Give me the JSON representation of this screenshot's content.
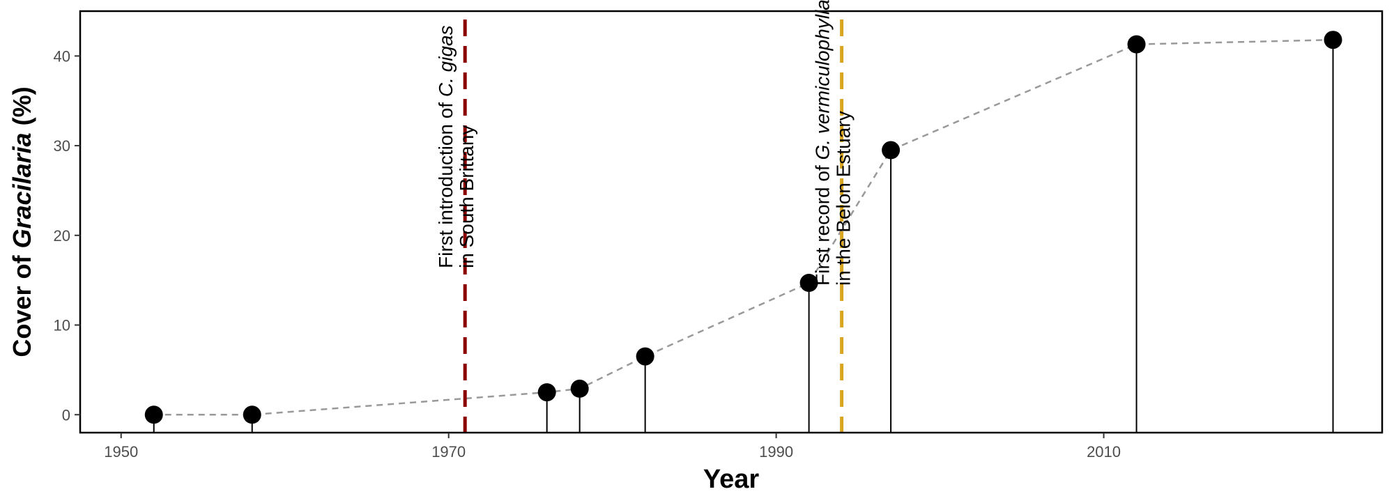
{
  "chart_data": {
    "type": "scatter",
    "xlabel": "Year",
    "ylabel_parts": [
      {
        "text": "Cover of ",
        "italic": false
      },
      {
        "text": "Gracilaria",
        "italic": true
      },
      {
        "text": " (%)",
        "italic": false
      }
    ],
    "xlim": [
      1947.5,
      2027
    ],
    "ylim": [
      -2,
      45
    ],
    "x_ticks": [
      1950,
      1970,
      1990,
      2010
    ],
    "y_ticks": [
      0,
      10,
      20,
      30,
      40
    ],
    "grid": false,
    "legend": "none",
    "series": [
      {
        "points": [
          {
            "x": 1952,
            "y": 0
          },
          {
            "x": 1958,
            "y": 0
          },
          {
            "x": 1976,
            "y": 2.5
          },
          {
            "x": 1978,
            "y": 2.9
          },
          {
            "x": 1982,
            "y": 6.5
          },
          {
            "x": 1992,
            "y": 14.7
          },
          {
            "x": 1997,
            "y": 29.5
          },
          {
            "x": 2012,
            "y": 41.3
          },
          {
            "x": 2024,
            "y": 41.8
          }
        ]
      }
    ],
    "vlines": [
      {
        "x": 1971,
        "color": "#8B0000",
        "label_lines": [
          [
            {
              "text": "First introduction of ",
              "italic": false
            },
            {
              "text": "C. gigas",
              "italic": true
            }
          ],
          [
            {
              "text": "in South Brittany",
              "italic": false
            }
          ]
        ]
      },
      {
        "x": 1994,
        "color": "#DAA520",
        "label_lines": [
          [
            {
              "text": "First record of ",
              "italic": false
            },
            {
              "text": "G. vermiculophylla",
              "italic": true
            }
          ],
          [
            {
              "text": "in the Belon Estuary",
              "italic": false
            }
          ]
        ]
      }
    ],
    "colors": {
      "points": "#000000",
      "connector": "#999999",
      "frame": "#000000"
    }
  }
}
